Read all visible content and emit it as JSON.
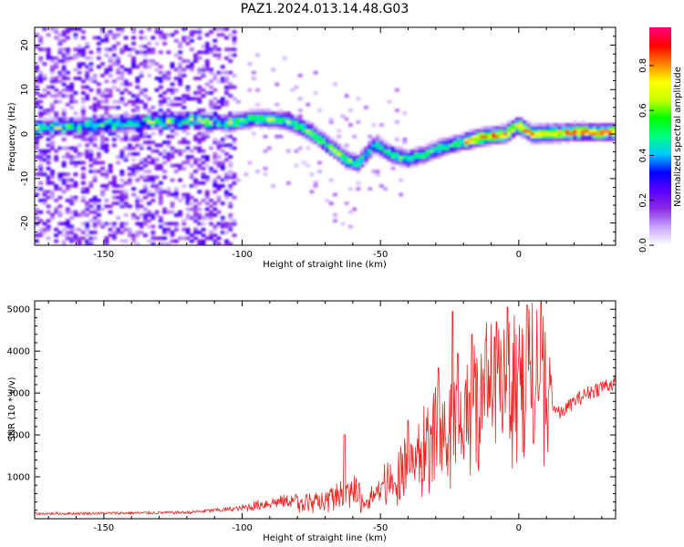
{
  "figure": {
    "title": "PAZ1.2024.013.14.48.G03"
  },
  "colorbar": {
    "label": "Normalized spectral amplitude",
    "range": [
      0,
      0.97
    ],
    "ticks": [
      0.0,
      0.2,
      0.4,
      0.6,
      0.8
    ],
    "tick_labels": [
      "0.0",
      "0.2",
      "0.4",
      "0.6",
      "0.8"
    ],
    "colors": [
      "#ffffff",
      "#c9a3ff",
      "#8a2be2",
      "#5a00ff",
      "#0000ff",
      "#00c8ff",
      "#00ff80",
      "#00ff00",
      "#c8ff00",
      "#ffff00",
      "#ff8000",
      "#ff0000",
      "#ff0080"
    ]
  },
  "chart_data": [
    {
      "type": "heatmap",
      "xlabel": "Height of straight line (km)",
      "ylabel": "Frequency (Hz)",
      "xlim": [
        -175,
        35
      ],
      "ylim": [
        -25,
        24
      ],
      "xticks": [
        -150,
        -100,
        -50,
        0
      ],
      "xtick_labels": [
        "-150",
        "-100",
        "-50",
        "0"
      ],
      "yticks": [
        -20,
        -10,
        0,
        10,
        20
      ],
      "ytick_labels": [
        "-20",
        "-10",
        "0",
        "10",
        "20"
      ],
      "ridge": {
        "x": [
          -175,
          -160,
          -145,
          -130,
          -118,
          -105,
          -95,
          -85,
          -78,
          -72,
          -66,
          -62,
          -58,
          -52,
          -46,
          -40,
          -34,
          -28,
          -22,
          -16,
          -10,
          -5,
          0,
          5,
          10,
          20,
          35
        ],
        "y": [
          1.5,
          1.8,
          2.3,
          3.0,
          3.3,
          2.5,
          3.6,
          3.2,
          1.5,
          -1.0,
          -3.8,
          -5.8,
          -6.5,
          -2.2,
          -4.5,
          -5.5,
          -4.5,
          -3.0,
          -2.0,
          -1.0,
          -0.3,
          0.0,
          2.0,
          0.0,
          0.2,
          0.5,
          0.5
        ]
      },
      "noise_region_x": [
        -175,
        -102
      ]
    },
    {
      "type": "line",
      "xlabel": "Height of straight line (km)",
      "ylabel": "SNR (10 * v/v)",
      "xlim": [
        -175,
        35
      ],
      "ylim": [
        0,
        5200
      ],
      "xticks": [
        -150,
        -100,
        -50,
        0
      ],
      "xtick_labels": [
        "-150",
        "-100",
        "-50",
        "0"
      ],
      "yticks": [
        1000,
        2000,
        3000,
        4000,
        5000
      ],
      "ytick_labels": [
        "1000",
        "2000",
        "3000",
        "4000",
        "5000"
      ],
      "line_color": "#ee2222",
      "envelope": {
        "x": [
          -175,
          -150,
          -120,
          -100,
          -90,
          -80,
          -70,
          -65,
          -60,
          -55,
          -50,
          -45,
          -40,
          -35,
          -30,
          -25,
          -20,
          -15,
          -10,
          -5,
          0,
          5,
          10,
          12,
          15,
          20,
          25,
          30,
          35
        ],
        "y": [
          120,
          130,
          150,
          250,
          380,
          450,
          480,
          650,
          800,
          450,
          900,
          1100,
          1500,
          1900,
          2300,
          2600,
          2700,
          3400,
          3500,
          3400,
          3700,
          3800,
          3500,
          2700,
          2500,
          2800,
          3000,
          3150,
          3250
        ]
      },
      "peaks": [
        {
          "x": -63,
          "y": 2000
        },
        {
          "x": -40,
          "y": 2350
        },
        {
          "x": -29,
          "y": 3600
        },
        {
          "x": -24,
          "y": 4950
        },
        {
          "x": -22,
          "y": 3950
        },
        {
          "x": -17,
          "y": 4400
        },
        {
          "x": -12,
          "y": 4250
        },
        {
          "x": -8,
          "y": 4700
        },
        {
          "x": -4,
          "y": 5050
        },
        {
          "x": 3,
          "y": 5100
        },
        {
          "x": 8,
          "y": 5200
        }
      ]
    }
  ]
}
